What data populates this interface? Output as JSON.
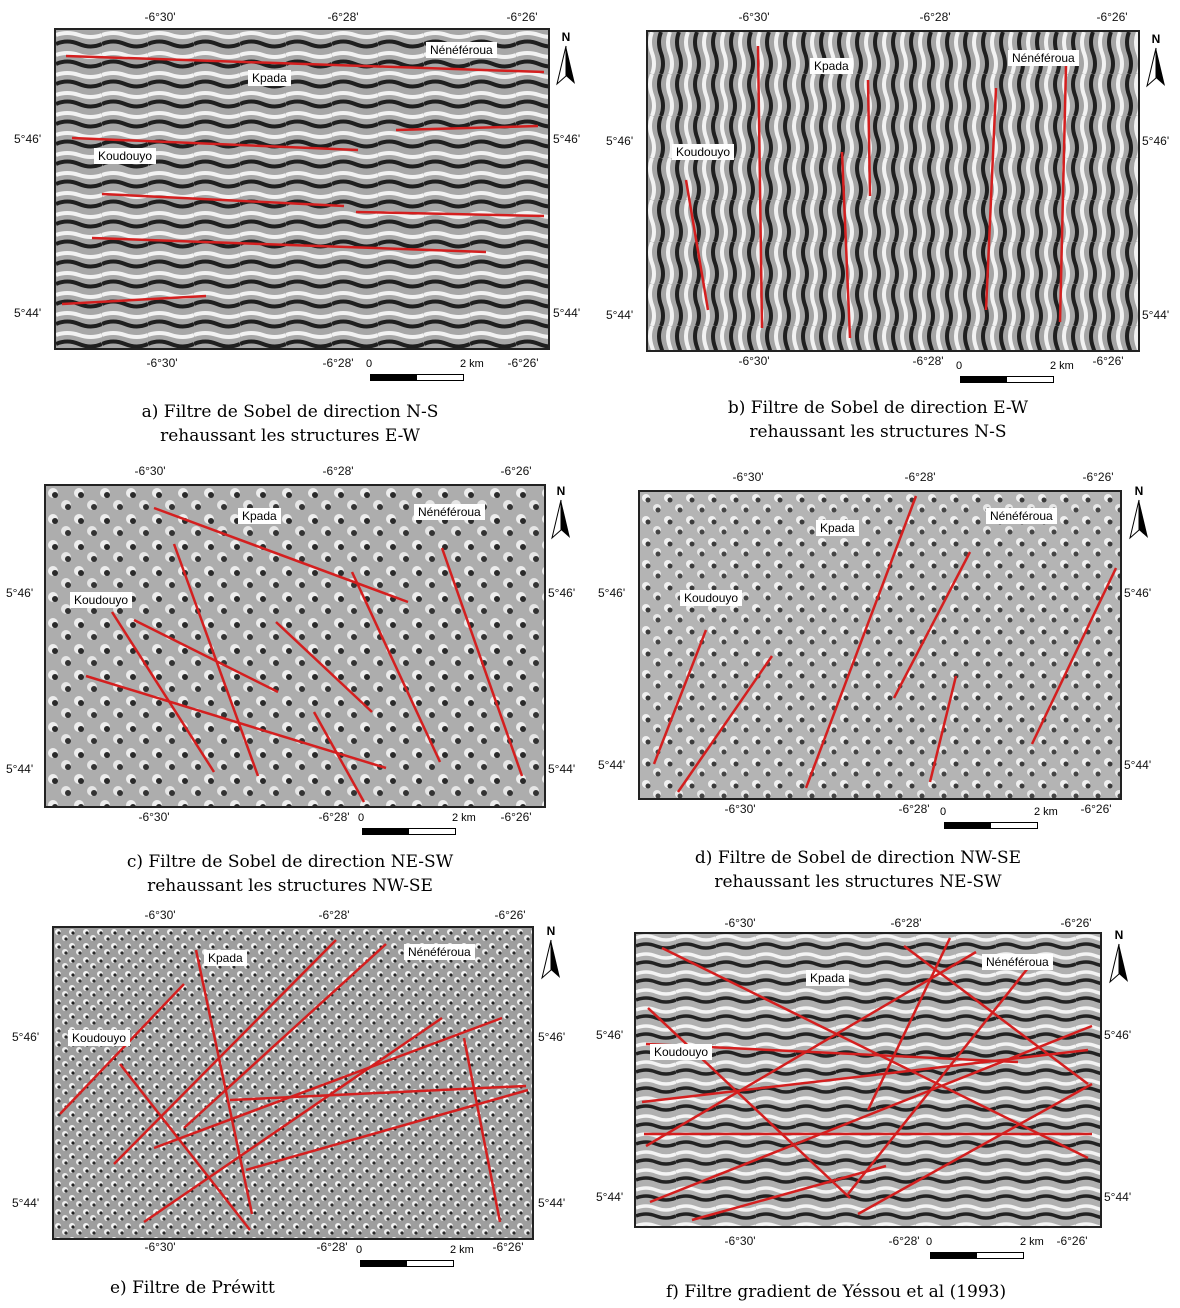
{
  "ticks": {
    "lon_west": "-6°30'",
    "lon_mid": "-6°28'",
    "lon_east": "-6°26'",
    "lat_north": "5°46'",
    "lat_south": "5°44'"
  },
  "places": {
    "kpada": "Kpada",
    "nenefteroua": "Nénéféroua",
    "koudouyo": "Koudouyo"
  },
  "north_label": "N",
  "scale": {
    "zero": "0",
    "dist": "2 km"
  },
  "panels": [
    {
      "id": "a",
      "caption_1": "a) Filtre de Sobel de direction N-S",
      "caption_2": "rehaussant les structures E-W",
      "texture": "horizontal"
    },
    {
      "id": "b",
      "caption_1": "b) Filtre de Sobel de direction E-W",
      "caption_2": "rehaussant les structures N-S",
      "texture": "vertical"
    },
    {
      "id": "c",
      "caption_1": "c) Filtre de Sobel de direction NE-SW",
      "caption_2": "rehaussant les structures NW-SE",
      "texture": "nwse"
    },
    {
      "id": "d",
      "caption_1": "d) Filtre de Sobel de direction NW-SE",
      "caption_2": "rehaussant les structures NE-SW",
      "texture": "nesw"
    },
    {
      "id": "e",
      "caption_1": "e) Filtre de Préwitt",
      "caption_2": "",
      "texture": "speckle"
    },
    {
      "id": "f",
      "caption_1": "f) Filtre gradient de Yéssou et al (1993)",
      "caption_2": "",
      "texture": "horizontal"
    }
  ],
  "colors": {
    "lineament": "#d41f1f",
    "frame": "#222222"
  }
}
